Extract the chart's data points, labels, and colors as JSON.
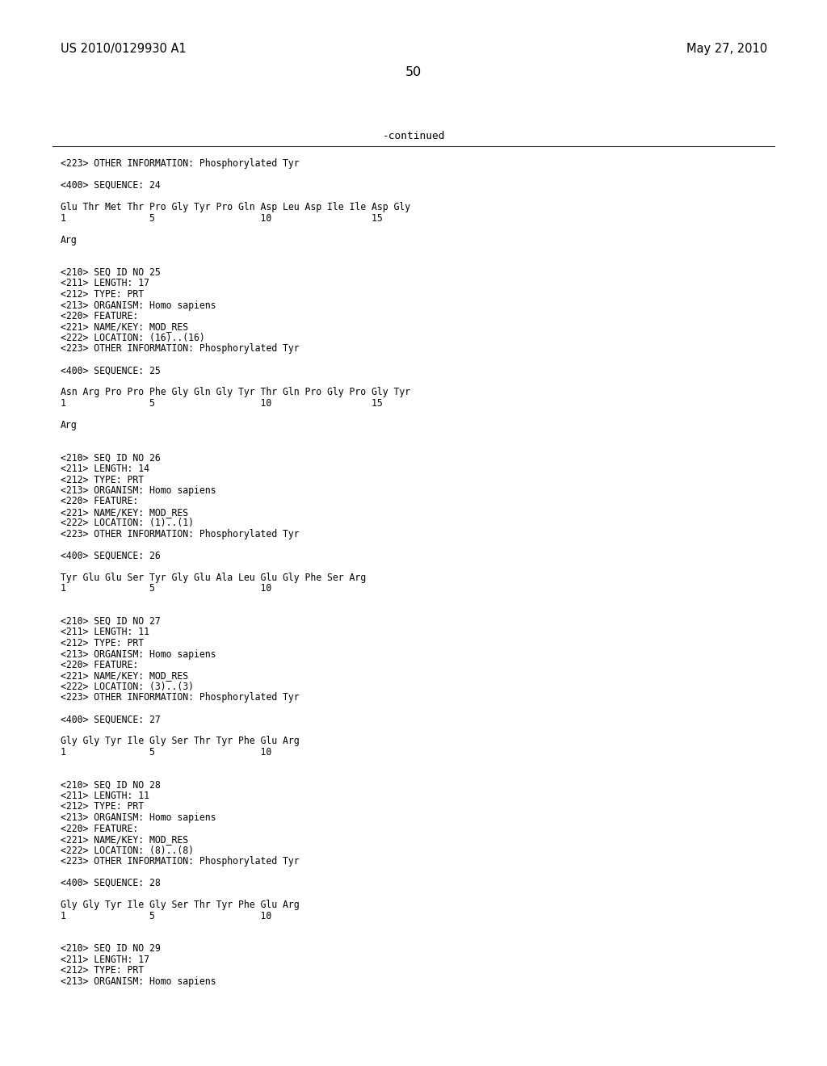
{
  "bg_color": "#ffffff",
  "header_left": "US 2010/0129930 A1",
  "header_right": "May 27, 2010",
  "page_number": "50",
  "continued_text": "-continued",
  "body_fontsize": 8.3,
  "header_fontsize": 10.5,
  "lines": [
    "<223> OTHER INFORMATION: Phosphorylated Tyr",
    "",
    "<400> SEQUENCE: 24",
    "",
    "Glu Thr Met Thr Pro Gly Tyr Pro Gln Asp Leu Asp Ile Ile Asp Gly",
    "1               5                   10                  15",
    "",
    "Arg",
    "",
    "",
    "<210> SEQ ID NO 25",
    "<211> LENGTH: 17",
    "<212> TYPE: PRT",
    "<213> ORGANISM: Homo sapiens",
    "<220> FEATURE:",
    "<221> NAME/KEY: MOD_RES",
    "<222> LOCATION: (16)..(16)",
    "<223> OTHER INFORMATION: Phosphorylated Tyr",
    "",
    "<400> SEQUENCE: 25",
    "",
    "Asn Arg Pro Pro Phe Gly Gln Gly Tyr Thr Gln Pro Gly Pro Gly Tyr",
    "1               5                   10                  15",
    "",
    "Arg",
    "",
    "",
    "<210> SEQ ID NO 26",
    "<211> LENGTH: 14",
    "<212> TYPE: PRT",
    "<213> ORGANISM: Homo sapiens",
    "<220> FEATURE:",
    "<221> NAME/KEY: MOD_RES",
    "<222> LOCATION: (1)..(1)",
    "<223> OTHER INFORMATION: Phosphorylated Tyr",
    "",
    "<400> SEQUENCE: 26",
    "",
    "Tyr Glu Glu Ser Tyr Gly Glu Ala Leu Glu Gly Phe Ser Arg",
    "1               5                   10",
    "",
    "",
    "<210> SEQ ID NO 27",
    "<211> LENGTH: 11",
    "<212> TYPE: PRT",
    "<213> ORGANISM: Homo sapiens",
    "<220> FEATURE:",
    "<221> NAME/KEY: MOD_RES",
    "<222> LOCATION: (3)..(3)",
    "<223> OTHER INFORMATION: Phosphorylated Tyr",
    "",
    "<400> SEQUENCE: 27",
    "",
    "Gly Gly Tyr Ile Gly Ser Thr Tyr Phe Glu Arg",
    "1               5                   10",
    "",
    "",
    "<210> SEQ ID NO 28",
    "<211> LENGTH: 11",
    "<212> TYPE: PRT",
    "<213> ORGANISM: Homo sapiens",
    "<220> FEATURE:",
    "<221> NAME/KEY: MOD_RES",
    "<222> LOCATION: (8)..(8)",
    "<223> OTHER INFORMATION: Phosphorylated Tyr",
    "",
    "<400> SEQUENCE: 28",
    "",
    "Gly Gly Tyr Ile Gly Ser Thr Tyr Phe Glu Arg",
    "1               5                   10",
    "",
    "",
    "<210> SEQ ID NO 29",
    "<211> LENGTH: 17",
    "<212> TYPE: PRT",
    "<213> ORGANISM: Homo sapiens"
  ]
}
